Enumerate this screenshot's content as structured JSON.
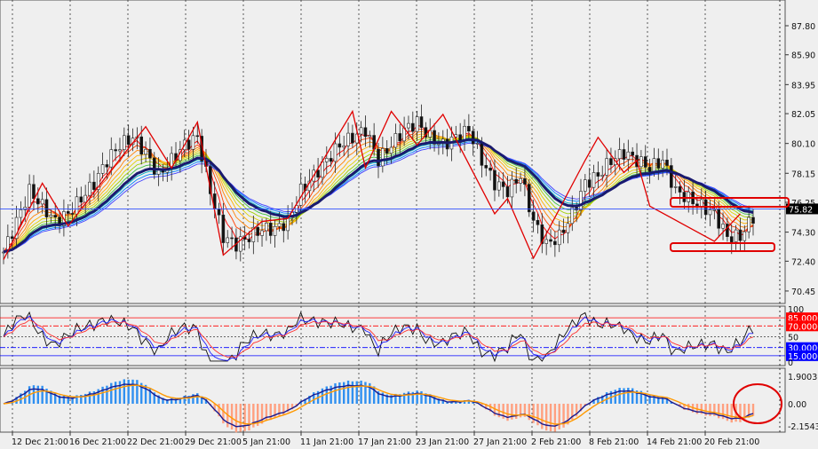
{
  "chart_data": {
    "type": "candlestick",
    "symbol_price_current": "75.82",
    "price_axis": {
      "ticks": [
        "87.80",
        "85.90",
        "83.95",
        "82.05",
        "80.10",
        "78.15",
        "76.25",
        "74.30",
        "72.40",
        "70.45"
      ],
      "range": [
        69.6,
        89.2
      ]
    },
    "x_labels": [
      "12 Dec 21:00",
      "16 Dec 21:00",
      "22 Dec 21:00",
      "29 Dec 21:00",
      "5 Jan 21:00",
      "11 Jan 21:00",
      "17 Jan 21:00",
      "23 Jan 21:00",
      "27 Jan 21:00",
      "2 Feb 21:00",
      "8 Feb 21:00",
      "14 Feb 21:00",
      "20 Feb 21:00"
    ],
    "close": [
      73,
      75,
      77,
      76,
      75,
      75.5,
      76.5,
      77.5,
      79,
      80,
      80.5,
      79.5,
      78,
      79,
      80,
      80.5,
      77,
      74,
      73.5,
      74,
      74.5,
      74.5,
      75,
      77,
      78,
      79,
      80,
      80.5,
      81,
      79,
      80,
      81,
      81.5,
      80.5,
      80,
      80.5,
      81,
      79,
      77.5,
      77,
      78,
      75,
      73.5,
      74,
      75.5,
      77.5,
      78,
      79,
      79.5,
      79,
      78.5,
      79,
      77,
      76.5,
      76,
      75.5,
      74,
      74,
      75.3
    ],
    "zigzag": [
      [
        0,
        72.5
      ],
      [
        3,
        77.5
      ],
      [
        5,
        74.7
      ],
      [
        8,
        78
      ],
      [
        11,
        81.2
      ],
      [
        13,
        78.5
      ],
      [
        15,
        81.5
      ],
      [
        17,
        72.8
      ],
      [
        20,
        75
      ],
      [
        22,
        75.2
      ],
      [
        27,
        82.2
      ],
      [
        28,
        78.5
      ],
      [
        30,
        82.2
      ],
      [
        32,
        80
      ],
      [
        34,
        82
      ],
      [
        38,
        75.5
      ],
      [
        39,
        76.5
      ],
      [
        41,
        72.6
      ],
      [
        45,
        79
      ],
      [
        46,
        80.5
      ],
      [
        48,
        78.2
      ],
      [
        49,
        79
      ],
      [
        50,
        76
      ],
      [
        55,
        73.7
      ],
      [
        57,
        75.5
      ]
    ],
    "rsi_panel": {
      "ticks": [
        "100",
        "50",
        "0"
      ],
      "levels": [
        {
          "label": "85.0000",
          "value": 85,
          "color": "#ff0000"
        },
        {
          "label": "70.0000",
          "value": 70,
          "color": "#ff0000"
        },
        {
          "label": "30.0000",
          "value": 30,
          "color": "#0000ff"
        },
        {
          "label": "15.0000",
          "value": 15,
          "color": "#0000ff"
        }
      ]
    },
    "macd_panel": {
      "ticks": [
        "1.9003",
        "0.00",
        "-2.1543"
      ],
      "range": [
        -2.1543,
        1.9003
      ]
    }
  }
}
